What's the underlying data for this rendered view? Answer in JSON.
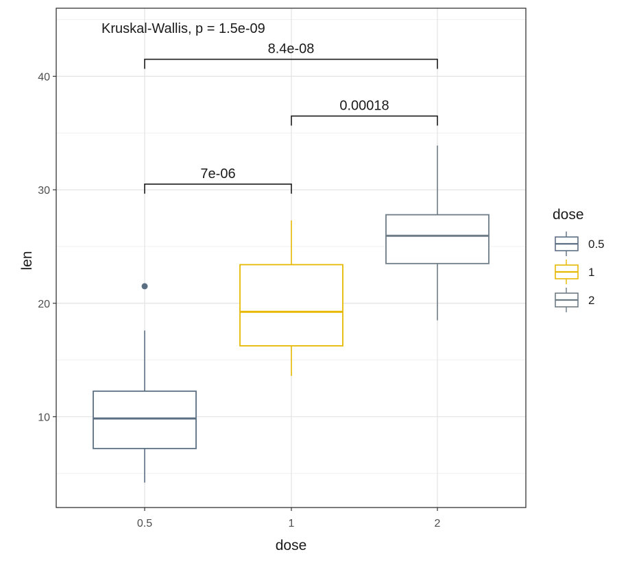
{
  "chart_data": {
    "type": "boxplot",
    "xlabel": "dose",
    "ylabel": "len",
    "categories": [
      "0.5",
      "1",
      "2"
    ],
    "ylim": [
      2,
      46
    ],
    "yticks": [
      10,
      20,
      30,
      40
    ],
    "grid": true,
    "boxes": [
      {
        "category": "0.5",
        "whisker_low": 4.2,
        "q1": 7.2,
        "median": 9.85,
        "q3": 12.25,
        "whisker_high": 17.6,
        "outliers": [
          21.5
        ],
        "color": "#5a6e82"
      },
      {
        "category": "1",
        "whisker_low": 13.6,
        "q1": 16.25,
        "median": 19.25,
        "q3": 23.4,
        "whisker_high": 27.3,
        "outliers": [],
        "color": "#e7b800"
      },
      {
        "category": "2",
        "whisker_low": 18.5,
        "q1": 23.5,
        "median": 25.95,
        "q3": 27.8,
        "whisker_high": 33.9,
        "outliers": [],
        "color": "#6d7b85"
      }
    ],
    "annotations": {
      "global_test": "Kruskal-Wallis, p = 1.5e-09",
      "comparisons": [
        {
          "from": "0.5",
          "to": "1",
          "label": "7e-06",
          "y": 30.5
        },
        {
          "from": "1",
          "to": "2",
          "label": "0.00018",
          "y": 36.5
        },
        {
          "from": "0.5",
          "to": "2",
          "label": "8.4e-08",
          "y": 41.5
        }
      ]
    },
    "legend": {
      "title": "dose",
      "position": "right",
      "entries": [
        {
          "label": "0.5",
          "color": "#5a6e82"
        },
        {
          "label": "1",
          "color": "#e7b800"
        },
        {
          "label": "2",
          "color": "#6d7b85"
        }
      ]
    }
  }
}
